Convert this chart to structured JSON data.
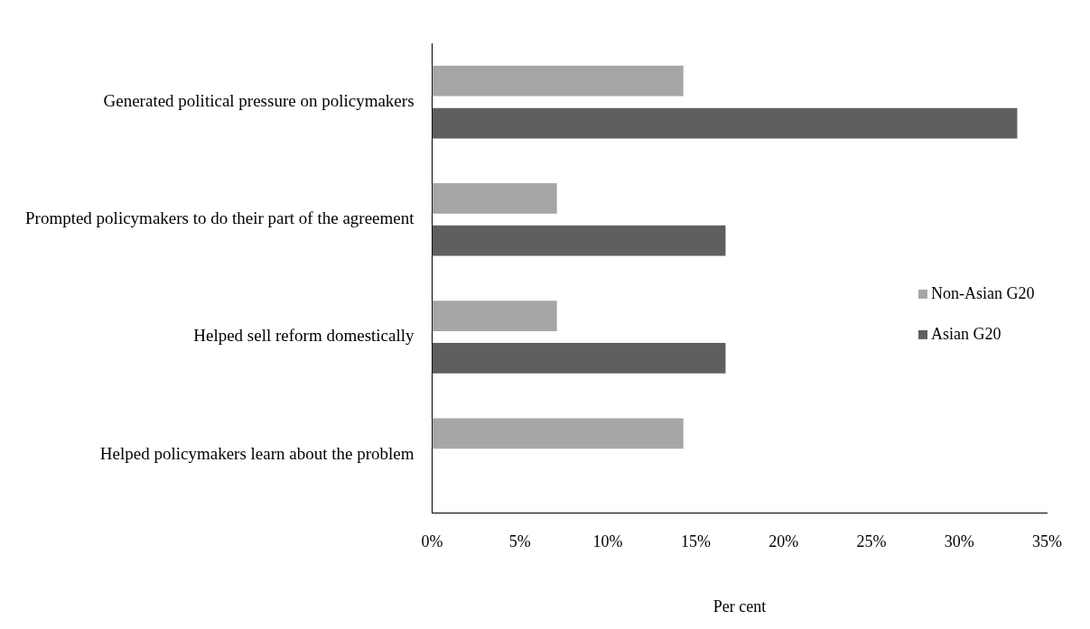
{
  "chart_data": {
    "type": "bar",
    "orientation": "horizontal",
    "xlabel": "Per cent",
    "categories": [
      "Generated political pressure on policymakers",
      "Prompted policymakers to do their part of the agreement",
      "Helped sell reform domestically",
      "Helped policymakers learn about the problem"
    ],
    "series": [
      {
        "name": "Non-Asian G20",
        "color": "#a6a6a6",
        "values": [
          14.3,
          7.1,
          7.1,
          14.3
        ]
      },
      {
        "name": "Asian G20",
        "color": "#5f5f5f",
        "values": [
          33.3,
          16.7,
          16.7,
          0
        ]
      }
    ],
    "xlim": [
      0,
      35
    ],
    "xticks": [
      {
        "value": 0,
        "label": "0%"
      },
      {
        "value": 5,
        "label": "5%"
      },
      {
        "value": 10,
        "label": "10%"
      },
      {
        "value": 15,
        "label": "15%"
      },
      {
        "value": 20,
        "label": "20%"
      },
      {
        "value": 25,
        "label": "25%"
      },
      {
        "value": 30,
        "label": "30%"
      },
      {
        "value": 35,
        "label": "35%"
      }
    ],
    "grid": false,
    "legend": "right"
  }
}
